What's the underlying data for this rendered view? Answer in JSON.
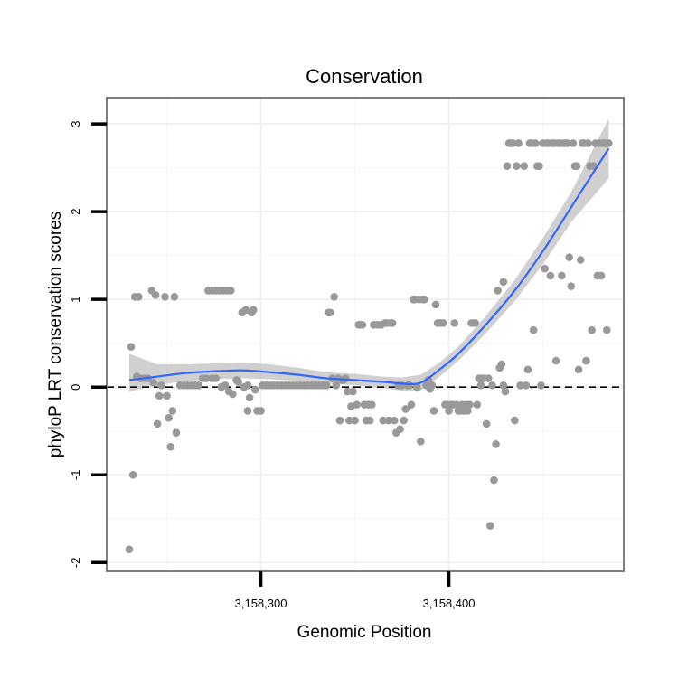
{
  "chart_data": {
    "type": "scatter",
    "title": "Conservation",
    "xlabel": "Genomic Position",
    "ylabel": "phyloP LRT conservation scores",
    "xlim": [
      3158218,
      3158493
    ],
    "ylim": [
      -2.1,
      3.3
    ],
    "x_ticks": [
      3158300,
      3158400
    ],
    "x_tick_labels": [
      "3,158,300",
      "3,158,400"
    ],
    "y_ticks": [
      -2,
      -1,
      0,
      1,
      2,
      3
    ],
    "y_tick_labels": [
      "-2",
      "-1",
      "0",
      "1",
      "2",
      "3"
    ],
    "grid": true,
    "reference_line": {
      "y": 0,
      "style": "dashed"
    },
    "colors": {
      "points": "#999999",
      "smooth_line": "#3366ff",
      "ci_band": "#c8c8c8",
      "reference": "#000000"
    },
    "series": [
      {
        "points": [
          [
            3158230,
            -1.85
          ],
          [
            3158231,
            0.46
          ],
          [
            3158232,
            -1.0
          ],
          [
            3158233,
            1.03
          ],
          [
            3158235,
            1.03
          ],
          [
            3158234,
            0.12
          ],
          [
            3158236,
            0.1
          ],
          [
            3158238,
            0.1
          ],
          [
            3158240,
            0.1
          ],
          [
            3158242,
            1.1
          ],
          [
            3158244,
            1.05
          ],
          [
            3158243,
            0.05
          ],
          [
            3158245,
            -0.42
          ],
          [
            3158246,
            -0.1
          ],
          [
            3158247,
            0.02
          ],
          [
            3158249,
            1.03
          ],
          [
            3158250,
            -0.1
          ],
          [
            3158251,
            -0.35
          ],
          [
            3158252,
            -0.68
          ],
          [
            3158253,
            -0.27
          ],
          [
            3158254,
            1.03
          ],
          [
            3158255,
            -0.52
          ],
          [
            3158257,
            0.02
          ],
          [
            3158259,
            0.02
          ],
          [
            3158261,
            0.02
          ],
          [
            3158263,
            0.02
          ],
          [
            3158265,
            0.02
          ],
          [
            3158267,
            0.02
          ],
          [
            3158269,
            0.1
          ],
          [
            3158271,
            0.1
          ],
          [
            3158272,
            1.1
          ],
          [
            3158274,
            1.1
          ],
          [
            3158276,
            1.1
          ],
          [
            3158278,
            1.1
          ],
          [
            3158280,
            1.1
          ],
          [
            3158282,
            1.1
          ],
          [
            3158284,
            1.1
          ],
          [
            3158274,
            0.1
          ],
          [
            3158276,
            0.1
          ],
          [
            3158279,
            0.0
          ],
          [
            3158281,
            0.02
          ],
          [
            3158283,
            -0.05
          ],
          [
            3158285,
            -0.08
          ],
          [
            3158287,
            0.08
          ],
          [
            3158288,
            0.06
          ],
          [
            3158290,
            0.85
          ],
          [
            3158291,
            0.0
          ],
          [
            3158293,
            0.02
          ],
          [
            3158292,
            0.88
          ],
          [
            3158294,
            -0.12
          ],
          [
            3158293,
            -0.27
          ],
          [
            3158295,
            0.85
          ],
          [
            3158296,
            0.88
          ],
          [
            3158297,
            -0.03
          ],
          [
            3158298,
            -0.27
          ],
          [
            3158300,
            -0.27
          ],
          [
            3158301,
            0.02
          ],
          [
            3158303,
            0.02
          ],
          [
            3158305,
            0.02
          ],
          [
            3158307,
            0.02
          ],
          [
            3158309,
            0.02
          ],
          [
            3158311,
            0.02
          ],
          [
            3158313,
            0.02
          ],
          [
            3158315,
            0.02
          ],
          [
            3158317,
            0.02
          ],
          [
            3158319,
            0.02
          ],
          [
            3158321,
            0.02
          ],
          [
            3158323,
            0.02
          ],
          [
            3158325,
            0.02
          ],
          [
            3158327,
            0.02
          ],
          [
            3158329,
            0.02
          ],
          [
            3158331,
            0.02
          ],
          [
            3158333,
            0.02
          ],
          [
            3158335,
            0.02
          ],
          [
            3158336,
            0.85
          ],
          [
            3158337,
            0.85
          ],
          [
            3158338,
            0.1
          ],
          [
            3158339,
            1.03
          ],
          [
            3158340,
            0.02
          ],
          [
            3158341,
            0.1
          ],
          [
            3158342,
            -0.38
          ],
          [
            3158343,
            0.08
          ],
          [
            3158344,
            0.08
          ],
          [
            3158345,
            0.1
          ],
          [
            3158346,
            -0.05
          ],
          [
            3158347,
            -0.38
          ],
          [
            3158348,
            -0.22
          ],
          [
            3158349,
            -0.05
          ],
          [
            3158350,
            -0.38
          ],
          [
            3158351,
            -0.2
          ],
          [
            3158352,
            0.71
          ],
          [
            3158353,
            0.71
          ],
          [
            3158354,
            0.71
          ],
          [
            3158355,
            -0.2
          ],
          [
            3158356,
            -0.38
          ],
          [
            3158357,
            -0.2
          ],
          [
            3158358,
            -0.38
          ],
          [
            3158359,
            -0.2
          ],
          [
            3158360,
            0.71
          ],
          [
            3158362,
            0.71
          ],
          [
            3158364,
            0.71
          ],
          [
            3158365,
            -0.38
          ],
          [
            3158366,
            0.73
          ],
          [
            3158367,
            0.73
          ],
          [
            3158368,
            -0.38
          ],
          [
            3158369,
            0.73
          ],
          [
            3158370,
            0.73
          ],
          [
            3158371,
            -0.38
          ],
          [
            3158372,
            -0.52
          ],
          [
            3158373,
            0.02
          ],
          [
            3158374,
            -0.48
          ],
          [
            3158375,
            0.02
          ],
          [
            3158376,
            -0.38
          ],
          [
            3158377,
            -0.25
          ],
          [
            3158378,
            0.02
          ],
          [
            3158379,
            0.02
          ],
          [
            3158380,
            -0.2
          ],
          [
            3158381,
            1.0
          ],
          [
            3158382,
            1.0
          ],
          [
            3158383,
            0.0
          ],
          [
            3158384,
            1.0
          ],
          [
            3158385,
            -0.62
          ],
          [
            3158386,
            1.0
          ],
          [
            3158387,
            1.0
          ],
          [
            3158388,
            0.02
          ],
          [
            3158389,
            0.08
          ],
          [
            3158390,
            -0.02
          ],
          [
            3158391,
            0.02
          ],
          [
            3158392,
            -0.27
          ],
          [
            3158393,
            0.94
          ],
          [
            3158394,
            0.73
          ],
          [
            3158395,
            0.73
          ],
          [
            3158396,
            0.73
          ],
          [
            3158397,
            0.73
          ],
          [
            3158398,
            -0.2
          ],
          [
            3158399,
            -0.2
          ],
          [
            3158400,
            -0.27
          ],
          [
            3158401,
            -0.2
          ],
          [
            3158402,
            -0.2
          ],
          [
            3158403,
            0.73
          ],
          [
            3158404,
            -0.2
          ],
          [
            3158405,
            -0.27
          ],
          [
            3158406,
            -0.27
          ],
          [
            3158407,
            -0.2
          ],
          [
            3158408,
            -0.27
          ],
          [
            3158409,
            -0.2
          ],
          [
            3158410,
            -0.27
          ],
          [
            3158411,
            -0.2
          ],
          [
            3158412,
            0.73
          ],
          [
            3158413,
            0.73
          ],
          [
            3158414,
            0.73
          ],
          [
            3158415,
            -0.2
          ],
          [
            3158416,
            0.1
          ],
          [
            3158417,
            0.02
          ],
          [
            3158418,
            0.1
          ],
          [
            3158419,
            0.1
          ],
          [
            3158420,
            -0.42
          ],
          [
            3158421,
            0.1
          ],
          [
            3158422,
            -1.58
          ],
          [
            3158423,
            0.02
          ],
          [
            3158424,
            -1.06
          ],
          [
            3158425,
            -0.65
          ],
          [
            3158426,
            1.1
          ],
          [
            3158427,
            0.22
          ],
          [
            3158428,
            0.26
          ],
          [
            3158429,
            1.2
          ],
          [
            3158429,
            0.02
          ],
          [
            3158430,
            -0.05
          ],
          [
            3158431,
            2.52
          ],
          [
            3158432,
            2.78
          ],
          [
            3158433,
            2.78
          ],
          [
            3158434,
            2.78
          ],
          [
            3158435,
            -0.38
          ],
          [
            3158436,
            2.52
          ],
          [
            3158437,
            2.78
          ],
          [
            3158438,
            0.02
          ],
          [
            3158440,
            2.52
          ],
          [
            3158441,
            0.02
          ],
          [
            3158442,
            0.2
          ],
          [
            3158443,
            2.78
          ],
          [
            3158444,
            2.78
          ],
          [
            3158445,
            0.65
          ],
          [
            3158446,
            2.78
          ],
          [
            3158447,
            2.52
          ],
          [
            3158448,
            2.52
          ],
          [
            3158449,
            0.02
          ],
          [
            3158450,
            2.78
          ],
          [
            3158451,
            1.35
          ],
          [
            3158452,
            2.78
          ],
          [
            3158453,
            2.78
          ],
          [
            3158454,
            1.27
          ],
          [
            3158455,
            2.78
          ],
          [
            3158456,
            2.78
          ],
          [
            3158457,
            0.3
          ],
          [
            3158458,
            2.78
          ],
          [
            3158459,
            2.78
          ],
          [
            3158460,
            1.27
          ],
          [
            3158461,
            2.78
          ],
          [
            3158462,
            2.78
          ],
          [
            3158463,
            2.78
          ],
          [
            3158464,
            1.48
          ],
          [
            3158465,
            1.15
          ],
          [
            3158466,
            2.78
          ],
          [
            3158467,
            2.52
          ],
          [
            3158468,
            2.52
          ],
          [
            3158469,
            0.2
          ],
          [
            3158470,
            1.45
          ],
          [
            3158471,
            2.78
          ],
          [
            3158472,
            2.78
          ],
          [
            3158473,
            0.3
          ],
          [
            3158474,
            2.78
          ],
          [
            3158475,
            2.52
          ],
          [
            3158476,
            0.65
          ],
          [
            3158477,
            2.52
          ],
          [
            3158478,
            2.78
          ],
          [
            3158479,
            1.27
          ],
          [
            3158480,
            2.78
          ],
          [
            3158481,
            1.27
          ],
          [
            3158482,
            2.78
          ],
          [
            3158483,
            2.78
          ],
          [
            3158484,
            0.65
          ],
          [
            3158485,
            2.78
          ]
        ]
      }
    ],
    "smooth_fit": {
      "x": [
        3158230,
        3158245,
        3158260,
        3158275,
        3158290,
        3158305,
        3158320,
        3158335,
        3158350,
        3158365,
        3158375,
        3158385,
        3158395,
        3158405,
        3158420,
        3158435,
        3158450,
        3158465,
        3158485
      ],
      "y": [
        0.08,
        0.12,
        0.16,
        0.18,
        0.19,
        0.17,
        0.14,
        0.1,
        0.08,
        0.06,
        0.04,
        0.05,
        0.2,
        0.38,
        0.72,
        1.1,
        1.55,
        2.05,
        2.72
      ],
      "lower": [
        -0.05,
        0.02,
        0.07,
        0.09,
        0.1,
        0.09,
        0.07,
        0.04,
        0.02,
        -0.01,
        -0.04,
        -0.04,
        0.12,
        0.3,
        0.62,
        0.98,
        1.4,
        1.88,
        2.38
      ],
      "upper": [
        0.38,
        0.26,
        0.26,
        0.27,
        0.28,
        0.26,
        0.22,
        0.17,
        0.15,
        0.12,
        0.11,
        0.14,
        0.28,
        0.46,
        0.82,
        1.22,
        1.7,
        2.22,
        3.06
      ]
    }
  }
}
